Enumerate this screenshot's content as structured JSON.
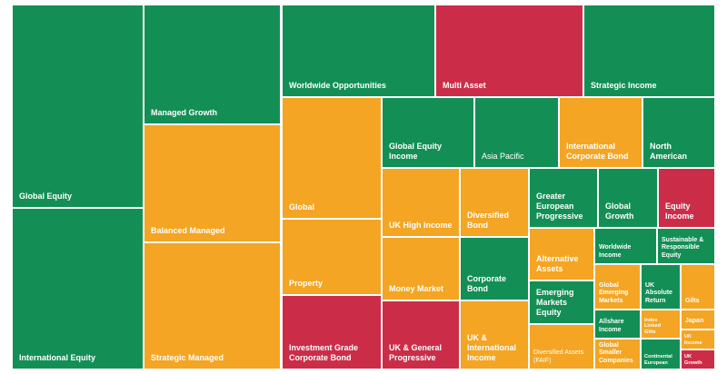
{
  "colors": {
    "green": "#138f56",
    "orange": "#f3a523",
    "red": "#cb2d49"
  },
  "tiles": [
    {
      "label": "Global Equity",
      "color": "green"
    },
    {
      "label": "International Equity",
      "color": "green"
    },
    {
      "label": "Managed Growth",
      "color": "green"
    },
    {
      "label": "Balanced Managed",
      "color": "orange"
    },
    {
      "label": "Strategic Managed",
      "color": "orange"
    },
    {
      "label": "Worldwide Opportunities",
      "color": "green"
    },
    {
      "label": "Multi Asset",
      "color": "red"
    },
    {
      "label": "Strategic Income",
      "color": "green"
    },
    {
      "label": "Global",
      "color": "orange"
    },
    {
      "label": "Property",
      "color": "orange"
    },
    {
      "label": "Investment Grade Corporate Bond",
      "color": "red"
    },
    {
      "label": "Global Equity Income",
      "color": "green"
    },
    {
      "label": "Asia Pacific",
      "color": "green"
    },
    {
      "label": "International Corporate Bond",
      "color": "orange"
    },
    {
      "label": "North American",
      "color": "green"
    },
    {
      "label": "UK High Income",
      "color": "orange"
    },
    {
      "label": "Diversified Bond",
      "color": "orange"
    },
    {
      "label": "Money Market",
      "color": "orange"
    },
    {
      "label": "Corporate Bond",
      "color": "green"
    },
    {
      "label": "UK & General Progressive",
      "color": "red"
    },
    {
      "label": "UK & International Income",
      "color": "orange"
    },
    {
      "label": "Greater European Progressive",
      "color": "green"
    },
    {
      "label": "Global Growth",
      "color": "green"
    },
    {
      "label": "Equity Income",
      "color": "red"
    },
    {
      "label": "Alternative Assets",
      "color": "orange"
    },
    {
      "label": "Worldwide Income",
      "color": "green"
    },
    {
      "label": "Sustainable & Responsible Equity",
      "color": "green"
    },
    {
      "label": "Emerging Markets Equity",
      "color": "green"
    },
    {
      "label": "Global Emerging Markets",
      "color": "orange"
    },
    {
      "label": "UK Absolute Return",
      "color": "green"
    },
    {
      "label": "Gilts",
      "color": "orange"
    },
    {
      "label": "Allshare Income",
      "color": "green"
    },
    {
      "label": "Index Linked Gilts",
      "color": "orange"
    },
    {
      "label": "Japan",
      "color": "orange"
    },
    {
      "label": "Diversified Assets (FAIF)",
      "color": "orange"
    },
    {
      "label": "Global Smaller Companies",
      "color": "orange"
    },
    {
      "label": "Continental European",
      "color": "green"
    },
    {
      "label": "UK Income",
      "color": "orange"
    },
    {
      "label": "UK Growth",
      "color": "red"
    }
  ]
}
